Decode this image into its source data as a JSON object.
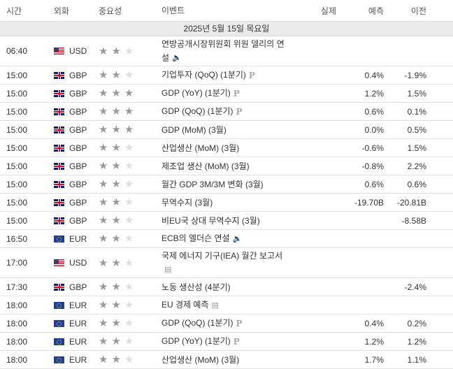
{
  "columns": {
    "time": "시간",
    "currency": "외화",
    "importance": "중요성",
    "event": "이벤트",
    "actual": "실제",
    "forecast": "예측",
    "previous": "이전"
  },
  "date": "2025년 5월 15일 목요일",
  "rows": [
    {
      "time": "06:40",
      "currency": "USD",
      "flag": "us",
      "stars": 2,
      "event": "연방공개시장위원회 위원 델리의 연설",
      "icon": "speaker-icon",
      "actual": "",
      "forecast": "",
      "previous": ""
    },
    {
      "time": "15:00",
      "currency": "GBP",
      "flag": "gb",
      "stars": 2,
      "event": "기업투자 (QoQ) (1분기)",
      "icon": "preliminary-icon",
      "actual": "",
      "forecast": "0.4%",
      "previous": "-1.9%"
    },
    {
      "time": "15:00",
      "currency": "GBP",
      "flag": "gb",
      "stars": 3,
      "event": "GDP (YoY) (1분기)",
      "icon": "preliminary-icon",
      "actual": "",
      "forecast": "1.2%",
      "previous": "1.5%"
    },
    {
      "time": "15:00",
      "currency": "GBP",
      "flag": "gb",
      "stars": 3,
      "event": "GDP (QoQ) (1분기)",
      "icon": "preliminary-icon",
      "actual": "",
      "forecast": "0.6%",
      "previous": "0.1%"
    },
    {
      "time": "15:00",
      "currency": "GBP",
      "flag": "gb",
      "stars": 3,
      "event": "GDP (MoM) (3월)",
      "icon": "",
      "actual": "",
      "forecast": "0.0%",
      "previous": "0.5%"
    },
    {
      "time": "15:00",
      "currency": "GBP",
      "flag": "gb",
      "stars": 2,
      "event": "산업생산 (MoM) (3월)",
      "icon": "",
      "actual": "",
      "forecast": "-0.6%",
      "previous": "1.5%"
    },
    {
      "time": "15:00",
      "currency": "GBP",
      "flag": "gb",
      "stars": 2,
      "event": "제조업 생산 (MoM) (3월)",
      "icon": "",
      "actual": "",
      "forecast": "-0.8%",
      "previous": "2.2%"
    },
    {
      "time": "15:00",
      "currency": "GBP",
      "flag": "gb",
      "stars": 2,
      "event": "월간 GDP 3M/3M 변화 (3월)",
      "icon": "",
      "actual": "",
      "forecast": "0.6%",
      "previous": "0.6%"
    },
    {
      "time": "15:00",
      "currency": "GBP",
      "flag": "gb",
      "stars": 2,
      "event": "무역수지 (3월)",
      "icon": "",
      "actual": "",
      "forecast": "-19.70B",
      "previous": "-20.81B"
    },
    {
      "time": "15:00",
      "currency": "GBP",
      "flag": "gb",
      "stars": 2,
      "event": "비EU국 상대 무역수지 (3월)",
      "icon": "",
      "actual": "",
      "forecast": "",
      "previous": "-8.58B"
    },
    {
      "time": "16:50",
      "currency": "EUR",
      "flag": "eu",
      "stars": 2,
      "event": "ECB의 엘더슨 연설",
      "icon": "speaker-icon",
      "actual": "",
      "forecast": "",
      "previous": ""
    },
    {
      "time": "17:00",
      "currency": "USD",
      "flag": "us",
      "stars": 2,
      "event": "국제 에너지 기구(IEA) 월간 보고서",
      "icon": "report-icon",
      "actual": "",
      "forecast": "",
      "previous": ""
    },
    {
      "time": "17:30",
      "currency": "GBP",
      "flag": "gb",
      "stars": 2,
      "event": "노동 생산성 (4분기)",
      "icon": "",
      "actual": "",
      "forecast": "",
      "previous": "-2.4%"
    },
    {
      "time": "18:00",
      "currency": "EUR",
      "flag": "eu",
      "stars": 2,
      "event": "EU 경제 예측",
      "icon": "report-icon",
      "actual": "",
      "forecast": "",
      "previous": ""
    },
    {
      "time": "18:00",
      "currency": "EUR",
      "flag": "eu",
      "stars": 2,
      "event": "GDP (QoQ) (1분기)",
      "icon": "preliminary-icon",
      "actual": "",
      "forecast": "0.4%",
      "previous": "0.2%"
    },
    {
      "time": "18:00",
      "currency": "EUR",
      "flag": "eu",
      "stars": 2,
      "event": "GDP (YoY) (1분기)",
      "icon": "preliminary-icon",
      "actual": "",
      "forecast": "1.2%",
      "previous": "1.2%"
    },
    {
      "time": "18:00",
      "currency": "EUR",
      "flag": "eu",
      "stars": 2,
      "event": "산업생산 (MoM) (3월)",
      "icon": "",
      "actual": "",
      "forecast": "1.7%",
      "previous": "1.1%"
    }
  ]
}
